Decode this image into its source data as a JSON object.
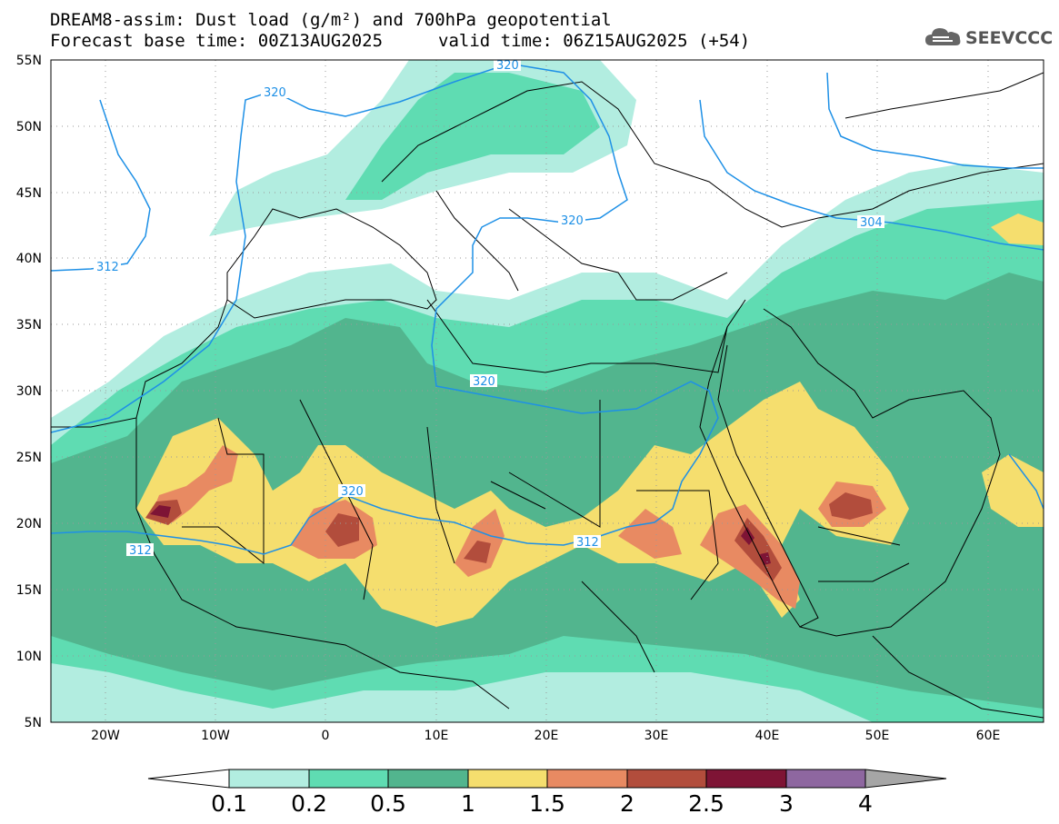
{
  "header": {
    "title_line1": "DREAM8-assim: Dust load (g/m²) and 700hPa geopotential",
    "title_line2": "Forecast base time: 00Z13AUG2025",
    "valid_time": "valid time: 06Z15AUG2025 (+54)",
    "logo_text": "SEEVCCC"
  },
  "map": {
    "lat_labels": [
      "55N",
      "50N",
      "45N",
      "40N",
      "35N",
      "30N",
      "25N",
      "20N",
      "15N",
      "10N",
      "5N"
    ],
    "lon_labels": [
      "20W",
      "10W",
      "0",
      "10E",
      "20E",
      "30E",
      "40E",
      "50E",
      "60E"
    ],
    "contour_labels": [
      "320",
      "320",
      "320",
      "320",
      "320",
      "312",
      "312",
      "312",
      "304"
    ],
    "colors": {
      "land_outline": "#000000",
      "contour_line": "#1e90e6",
      "background": "#ffffff"
    }
  },
  "colorbar": {
    "labels": [
      "0.1",
      "0.2",
      "0.5",
      "1",
      "1.5",
      "2",
      "2.5",
      "3",
      "4"
    ],
    "colors": [
      "#b2ede0",
      "#5fdcb2",
      "#52b58e",
      "#f5de6e",
      "#e88a62",
      "#b24d3c",
      "#7e1435",
      "#8e67a0"
    ],
    "under_color": "#ffffff",
    "over_color": "#a6a6a6"
  }
}
